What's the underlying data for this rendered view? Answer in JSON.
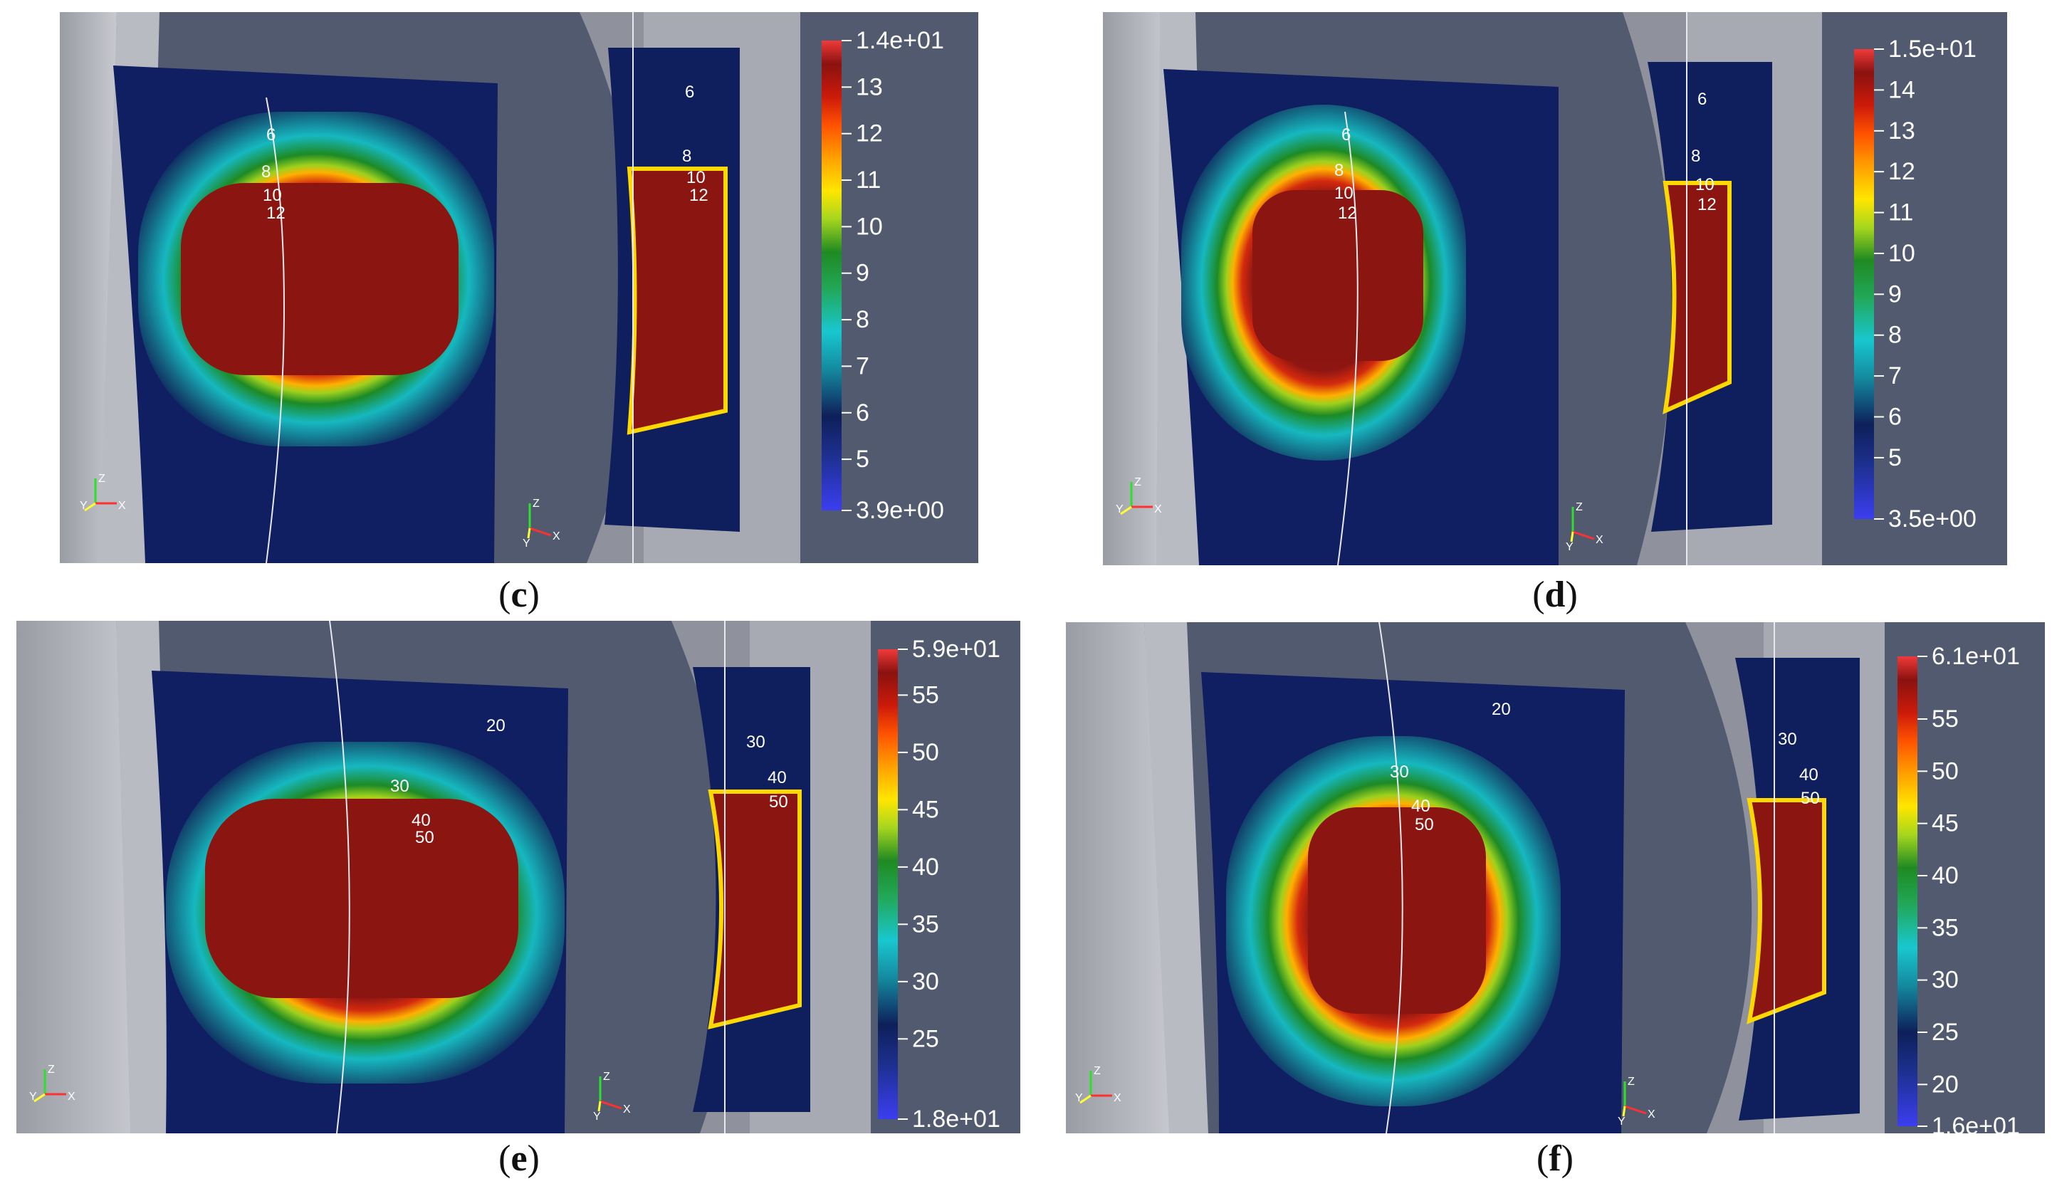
{
  "figure_title": "",
  "colors": {
    "background": "#525a70",
    "colormap": [
      "#3a3de8",
      "#1f3aa8",
      "#0e2a6e",
      "#1b6f8a",
      "#16b8c4",
      "#23a85a",
      "#1f8a22",
      "#9bd11e",
      "#ffe800",
      "#ffa300",
      "#ff5a00",
      "#d21a0a",
      "#8f1410",
      "#ef3a3a"
    ]
  },
  "panels": [
    {
      "id": "c",
      "caption_letter": "c",
      "caption_open": "(",
      "caption_close": ")",
      "colorbar": {
        "max_label": "1.4e+01",
        "min_label": "3.9e+00",
        "min": 3.9,
        "max": 14,
        "ticks": [
          "13",
          "12",
          "11",
          "10",
          "9",
          "8",
          "7",
          "6",
          "5"
        ],
        "tick_values": [
          13,
          12,
          11,
          10,
          9,
          8,
          7,
          6,
          5
        ]
      },
      "contour_labels_left": [
        "6",
        "8",
        "10",
        "12"
      ],
      "contour_labels_right": [
        "6",
        "8",
        "10",
        "12"
      ],
      "axes": [
        "Z",
        "Y",
        "X"
      ]
    },
    {
      "id": "d",
      "caption_letter": "d",
      "caption_open": "(",
      "caption_close": ")",
      "colorbar": {
        "max_label": "1.5e+01",
        "min_label": "3.5e+00",
        "min": 3.5,
        "max": 15,
        "ticks": [
          "14",
          "13",
          "12",
          "11",
          "10",
          "9",
          "8",
          "7",
          "6",
          "5"
        ],
        "tick_values": [
          14,
          13,
          12,
          11,
          10,
          9,
          8,
          7,
          6,
          5
        ]
      },
      "contour_labels_left": [
        "6",
        "8",
        "10",
        "12"
      ],
      "contour_labels_right": [
        "6",
        "8",
        "10",
        "12"
      ],
      "axes": [
        "Z",
        "Y",
        "X"
      ]
    },
    {
      "id": "e",
      "caption_letter": "e",
      "caption_open": "(",
      "caption_close": ")",
      "colorbar": {
        "max_label": "5.9e+01",
        "min_label": "1.8e+01",
        "min": 18,
        "max": 59,
        "ticks": [
          "55",
          "50",
          "45",
          "40",
          "35",
          "30",
          "25"
        ],
        "tick_values": [
          55,
          50,
          45,
          40,
          35,
          30,
          25
        ]
      },
      "contour_labels_left": [
        "20",
        "30",
        "40",
        "50"
      ],
      "contour_labels_right": [
        "30",
        "40",
        "50"
      ],
      "axes": [
        "Z",
        "Y",
        "X"
      ]
    },
    {
      "id": "f",
      "caption_letter": "f",
      "caption_open": "(",
      "caption_close": ")",
      "colorbar": {
        "max_label": "6.1e+01",
        "min_label": "1.6e+01",
        "min": 16,
        "max": 61,
        "ticks": [
          "55",
          "50",
          "45",
          "40",
          "35",
          "30",
          "25",
          "20"
        ],
        "tick_values": [
          55,
          50,
          45,
          40,
          35,
          30,
          25,
          20
        ]
      },
      "contour_labels_left": [
        "20",
        "30",
        "40",
        "50"
      ],
      "contour_labels_right": [
        "30",
        "40",
        "50"
      ],
      "axes": [
        "Z",
        "Y",
        "X"
      ]
    }
  ]
}
